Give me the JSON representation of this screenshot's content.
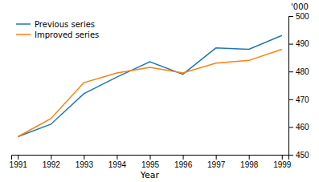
{
  "chart_data": {
    "type": "line",
    "x": [
      1991,
      1992,
      1993,
      1994,
      1995,
      1996,
      1997,
      1998,
      1999
    ],
    "series": [
      {
        "name": "Previous series",
        "values": [
          456.5,
          461,
          472,
          478,
          483.5,
          479,
          488.5,
          488,
          493
        ]
      },
      {
        "name": "Improved series",
        "values": [
          456.5,
          463,
          476,
          479.5,
          481.5,
          479.5,
          483,
          484,
          488
        ]
      }
    ],
    "xlabel": "Year",
    "ylabel": "'000",
    "xlim": [
      1990.8,
      1999.2
    ],
    "xticks": [
      1991,
      1992,
      1993,
      1994,
      1995,
      1996,
      1997,
      1998,
      1999
    ],
    "ylim": [
      450,
      500
    ],
    "yticks": [
      450,
      460,
      470,
      480,
      490,
      500
    ],
    "grid": false,
    "legend": "upper left"
  }
}
